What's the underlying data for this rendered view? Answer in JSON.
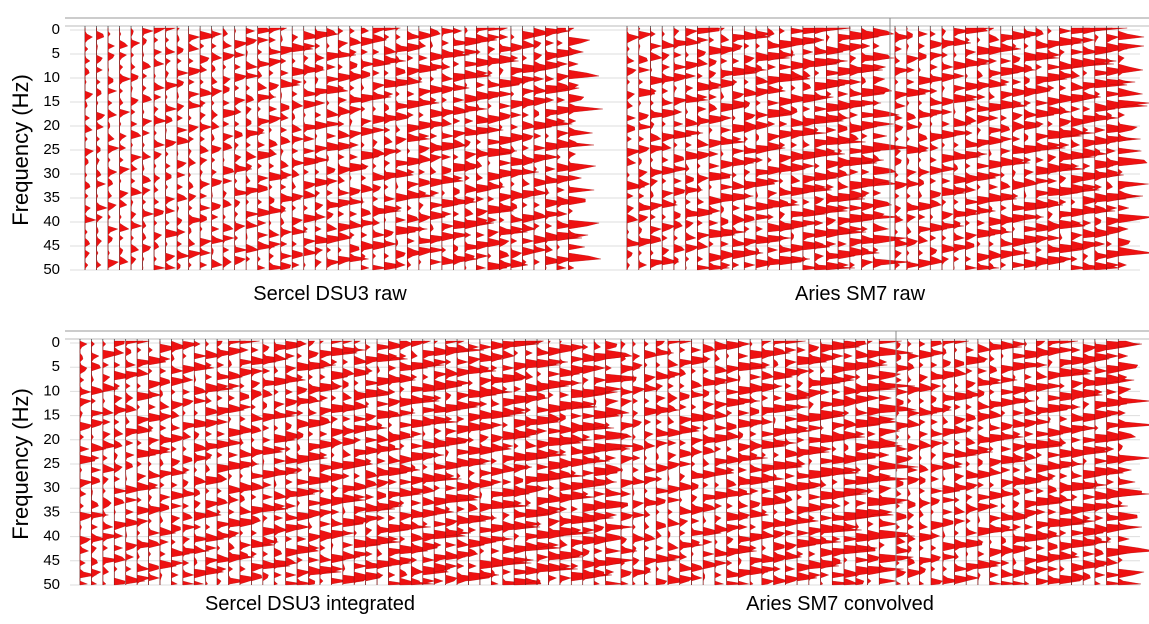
{
  "rows": [
    {
      "y_label": "Frequency (Hz)",
      "ylim": [
        0,
        50
      ],
      "yticks": [
        0,
        5,
        10,
        15,
        20,
        25,
        30,
        35,
        40,
        45,
        50
      ],
      "captions": [
        "Sercel DSU3 raw",
        "Aries SM7 raw"
      ]
    },
    {
      "y_label": "Frequency (Hz)",
      "ylim": [
        0,
        50
      ],
      "yticks": [
        0,
        5,
        10,
        15,
        20,
        25,
        30,
        35,
        40,
        45,
        50
      ],
      "captions": [
        "Sercel DSU3 integrated",
        "Aries SM7 convolved"
      ]
    }
  ]
}
